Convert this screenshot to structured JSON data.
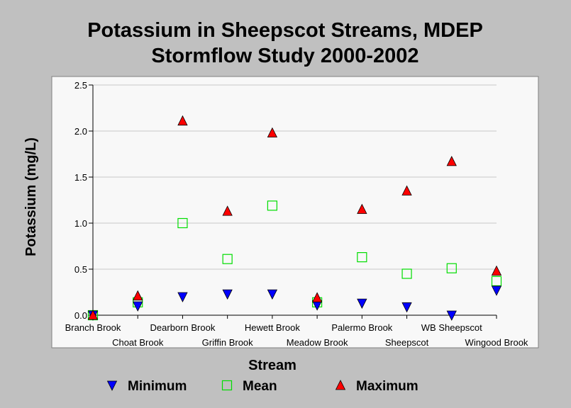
{
  "chart_data": {
    "type": "scatter",
    "title_lines": [
      "Potassium in Sheepscot Streams, MDEP",
      "Stormflow Study 2000-2002"
    ],
    "xlabel": "Stream",
    "ylabel": "Potassium (mg/L)",
    "categories": [
      "Branch Brook",
      "Choat Brook",
      "Dearborn Brook",
      "Griffin Brook",
      "Hewett Brook",
      "Meadow Brook",
      "Palermo Brook",
      "Sheepscot",
      "WB Sheepscot",
      "Wingood Brook"
    ],
    "ylim": [
      0,
      2.5
    ],
    "yticks": [
      "0.0",
      "0.5",
      "1.0",
      "1.5",
      "2.0",
      "2.5"
    ],
    "grid": true,
    "legend_position": "bottom",
    "series": [
      {
        "name": "Minimum",
        "marker": "triangle-down",
        "color": "#0000ff",
        "values": [
          0.0,
          0.1,
          0.2,
          0.23,
          0.23,
          0.11,
          0.13,
          0.09,
          0.0,
          0.27
        ]
      },
      {
        "name": "Mean",
        "marker": "square-open",
        "color": "#00dd00",
        "values": [
          0.0,
          0.14,
          1.0,
          0.61,
          1.19,
          0.14,
          0.63,
          0.45,
          0.51,
          0.37
        ]
      },
      {
        "name": "Maximum",
        "marker": "triangle-up",
        "color": "#ff0000",
        "values": [
          0.0,
          0.21,
          2.11,
          1.13,
          1.98,
          0.19,
          1.15,
          1.35,
          1.67,
          0.48
        ]
      }
    ]
  }
}
